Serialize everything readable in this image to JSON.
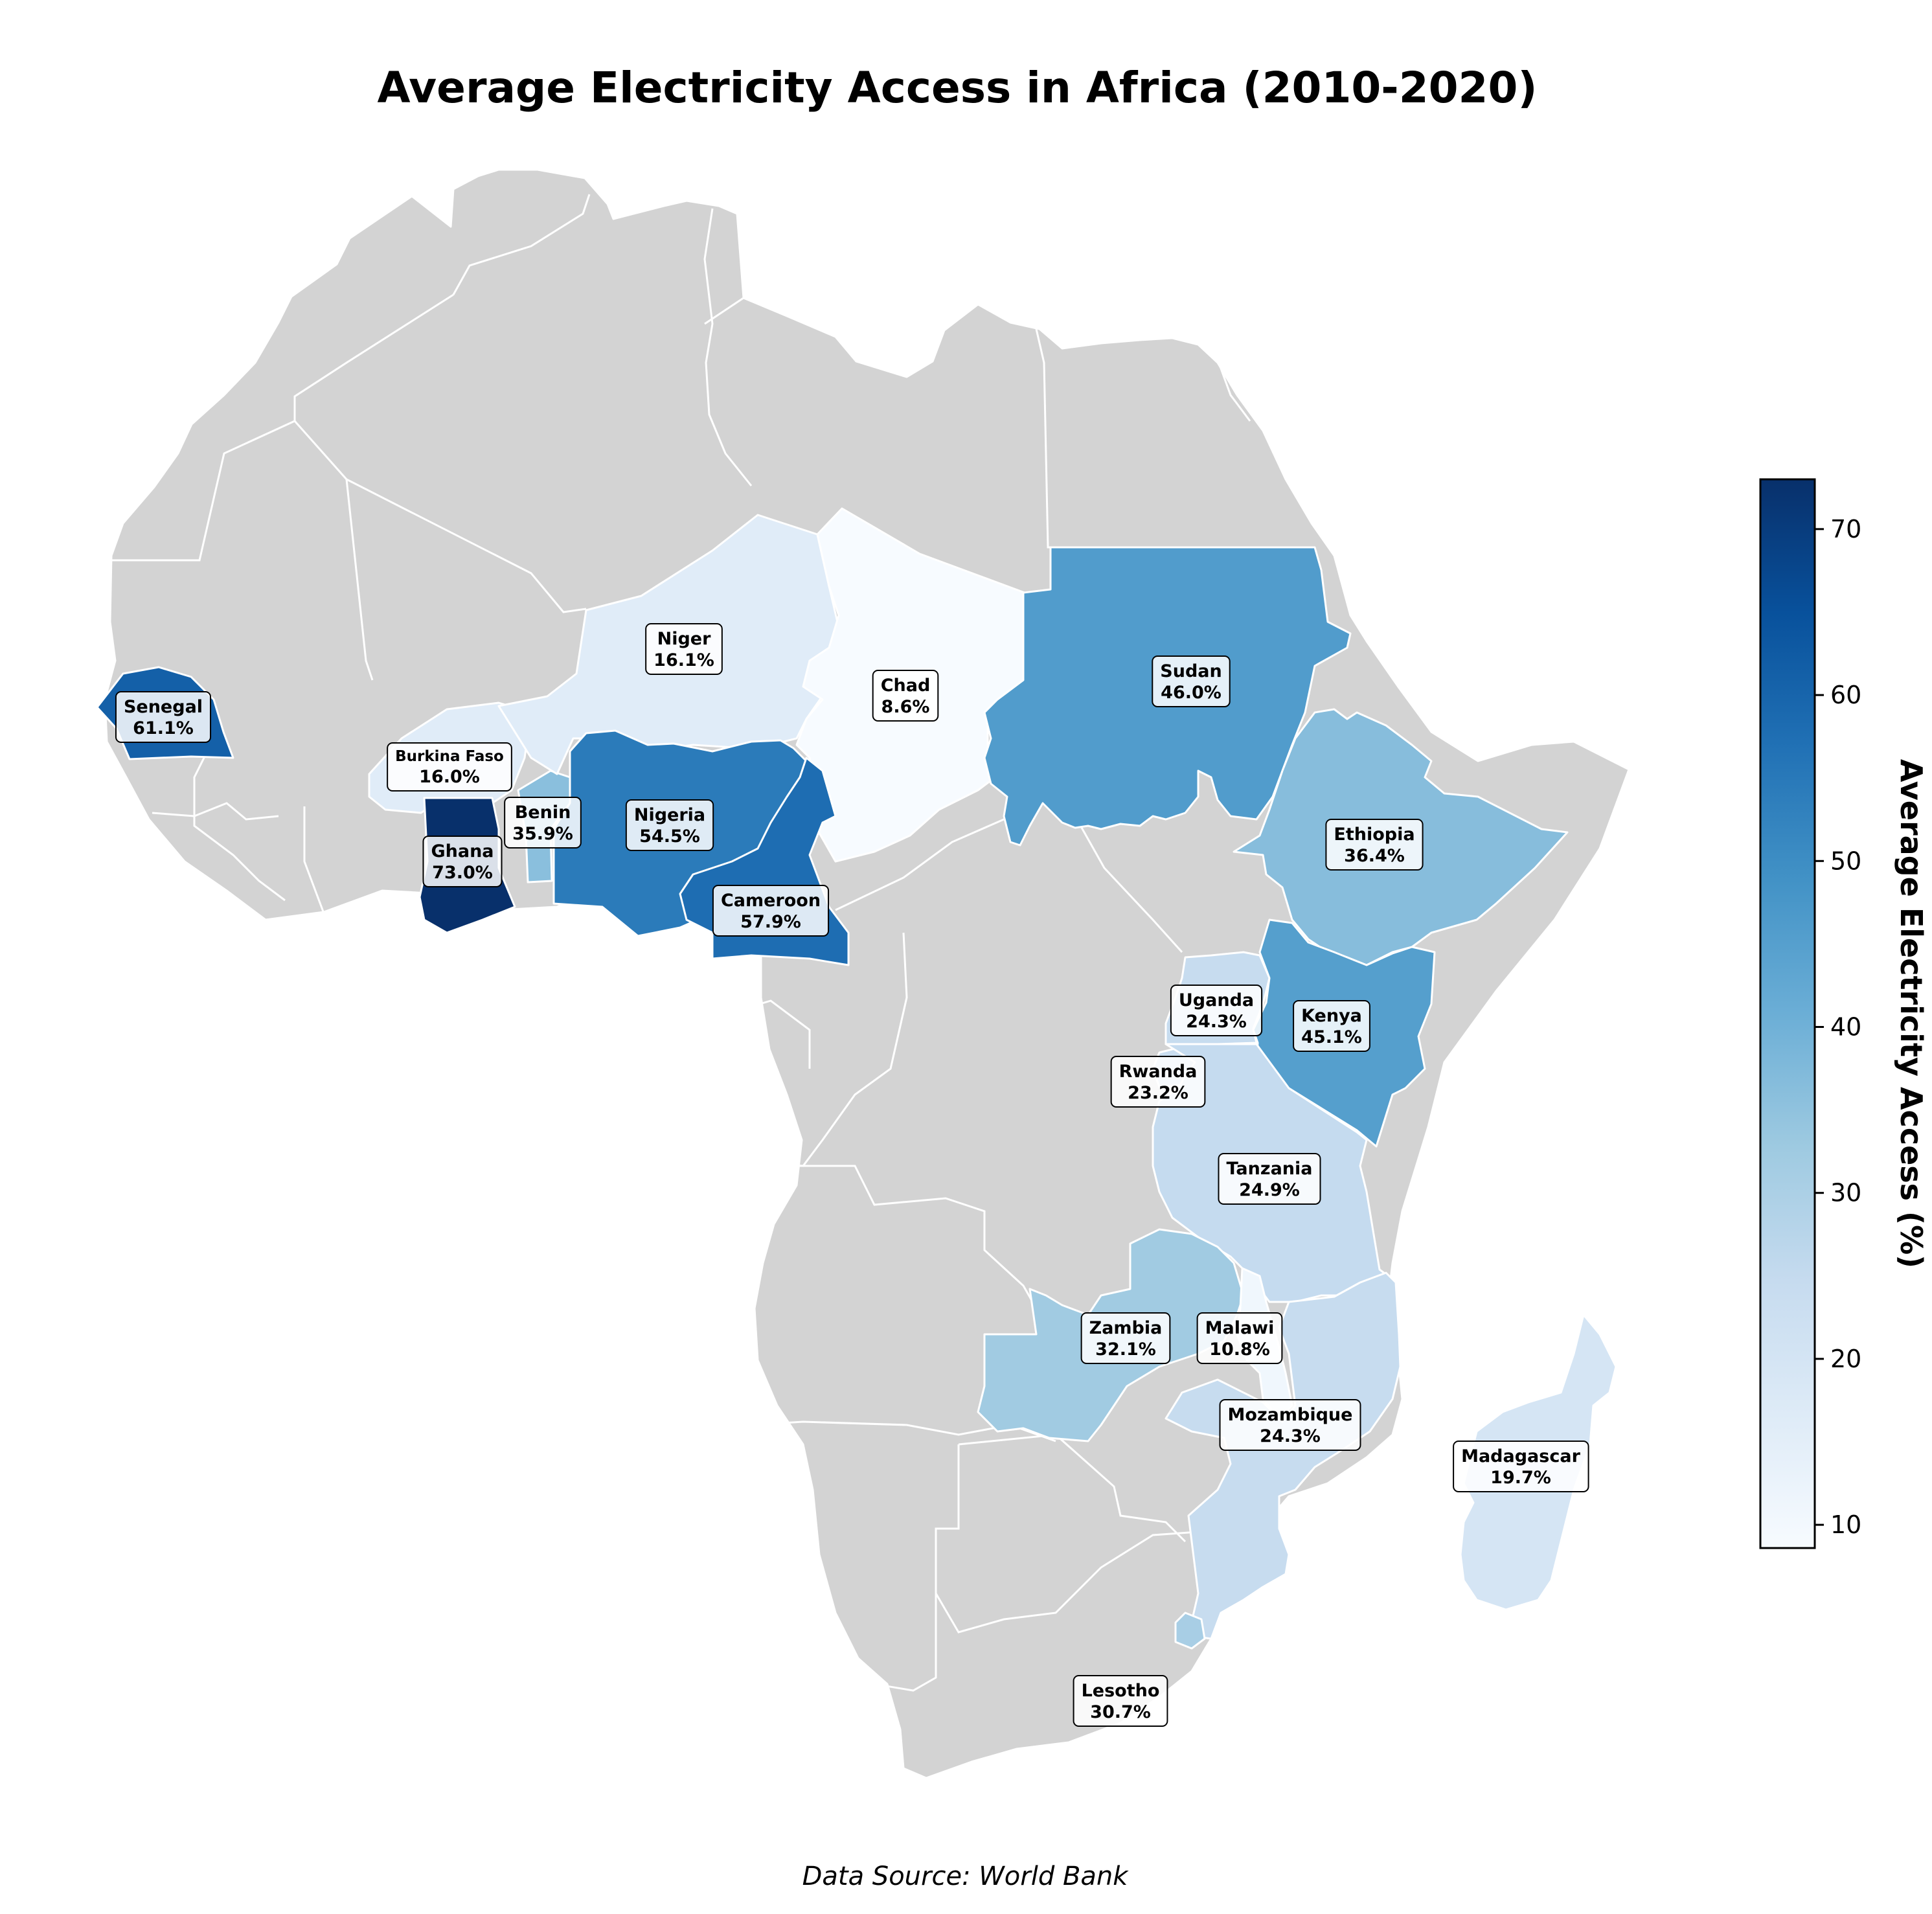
{
  "title": "Average Electricity Access in Africa (2010-2020)",
  "source": "Data Source: World Bank",
  "colorbar": {
    "label": "Average Electricity Access (%)",
    "min": 8.6,
    "max": 73.0,
    "ticks": [
      10,
      20,
      30,
      40,
      50,
      60,
      70
    ],
    "colorscale": "Blues",
    "scale_colors": [
      "#f7fbff",
      "#deebf7",
      "#c6dbef",
      "#9ecae1",
      "#6baed6",
      "#4292c6",
      "#2171b5",
      "#08519c",
      "#08306b"
    ]
  },
  "no_data_color": "#d3d3d3",
  "chart_data": {
    "type": "choropleth",
    "title": "Average Electricity Access in Africa (2010-2020)",
    "value_unit": "%",
    "countries": [
      {
        "name": "Senegal",
        "value": 61.1,
        "label": "61.1%"
      },
      {
        "name": "Burkina Faso",
        "value": 16.0,
        "label": "16.0%"
      },
      {
        "name": "Ghana",
        "value": 73.0,
        "label": "73.0%"
      },
      {
        "name": "Benin",
        "value": 35.9,
        "label": "35.9%"
      },
      {
        "name": "Niger",
        "value": 16.1,
        "label": "16.1%"
      },
      {
        "name": "Nigeria",
        "value": 54.5,
        "label": "54.5%"
      },
      {
        "name": "Chad",
        "value": 8.6,
        "label": "8.6%"
      },
      {
        "name": "Cameroon",
        "value": 57.9,
        "label": "57.9%"
      },
      {
        "name": "Sudan",
        "value": 46.0,
        "label": "46.0%"
      },
      {
        "name": "Ethiopia",
        "value": 36.4,
        "label": "36.4%"
      },
      {
        "name": "Uganda",
        "value": 24.3,
        "label": "24.3%"
      },
      {
        "name": "Kenya",
        "value": 45.1,
        "label": "45.1%"
      },
      {
        "name": "Rwanda",
        "value": 23.2,
        "label": "23.2%"
      },
      {
        "name": "Tanzania",
        "value": 24.9,
        "label": "24.9%"
      },
      {
        "name": "Zambia",
        "value": 32.1,
        "label": "32.1%"
      },
      {
        "name": "Malawi",
        "value": 10.8,
        "label": "10.8%"
      },
      {
        "name": "Mozambique",
        "value": 24.3,
        "label": "24.3%"
      },
      {
        "name": "Madagascar",
        "value": 19.7,
        "label": "19.7%"
      },
      {
        "name": "Lesotho",
        "value": 30.7,
        "label": "30.7%"
      }
    ]
  }
}
